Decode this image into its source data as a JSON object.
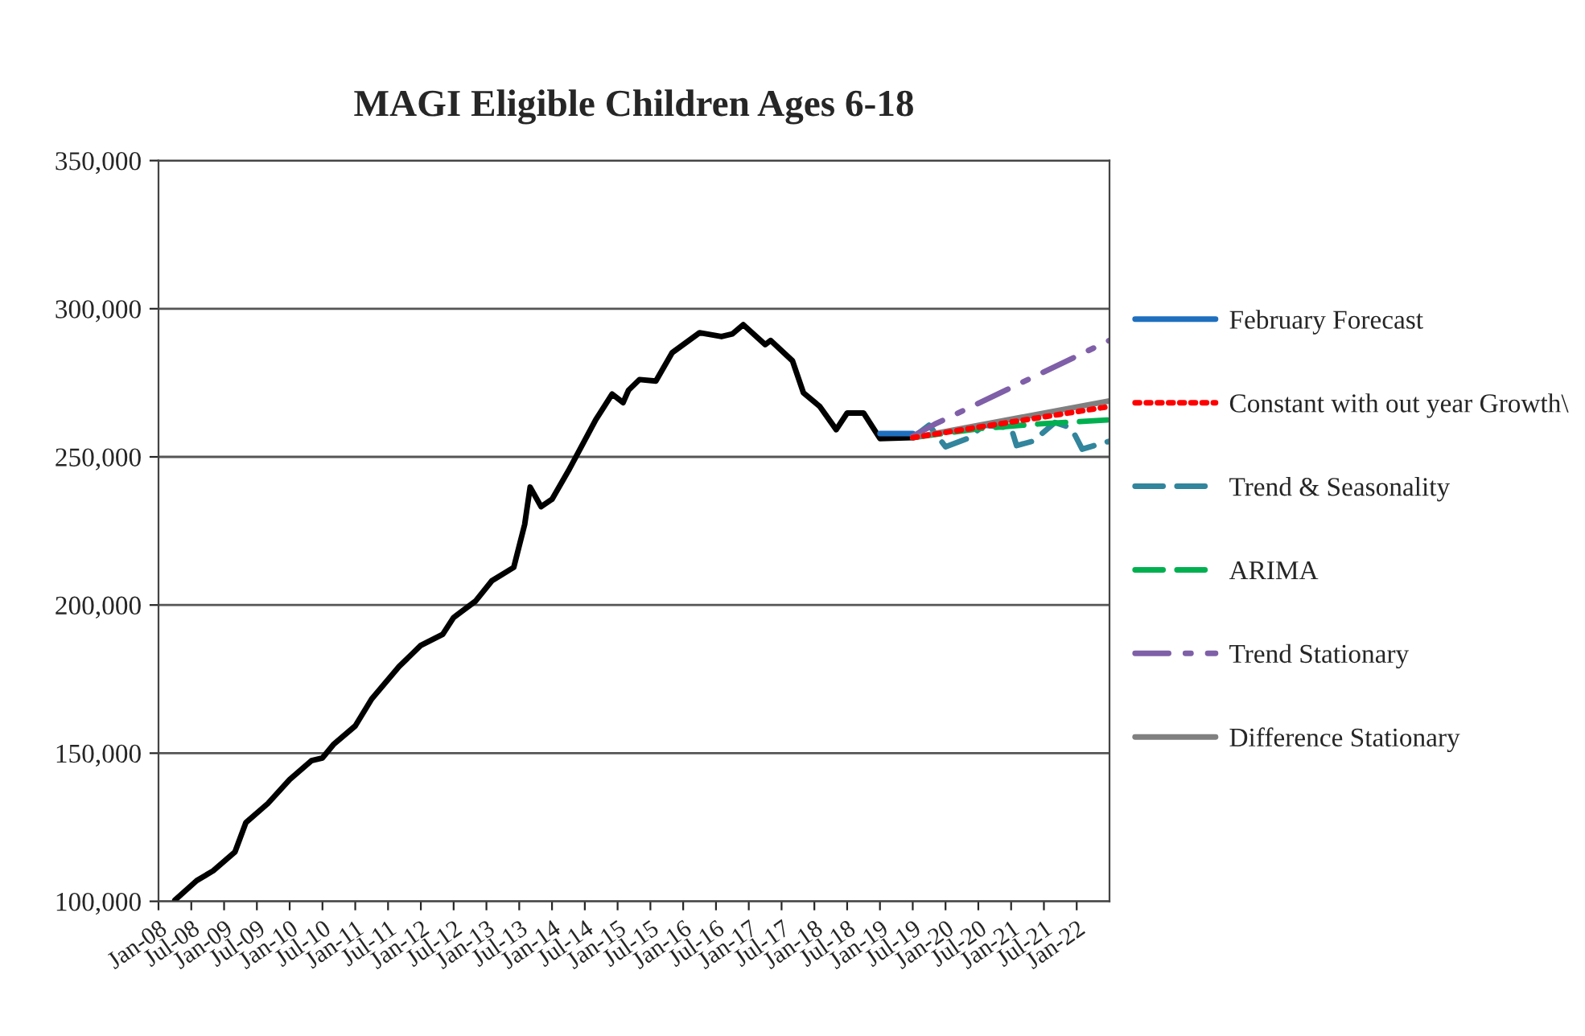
{
  "chart_data": {
    "type": "line",
    "title": "MAGI Eligible Children Ages 6-18",
    "xlim": [
      "2008-01",
      "2022-07"
    ],
    "xticks": [
      {
        "value": "2008-01",
        "label": "Jan-08"
      },
      {
        "value": "2008-07",
        "label": "Jul-08"
      },
      {
        "value": "2009-01",
        "label": "Jan-09"
      },
      {
        "value": "2009-07",
        "label": "Jul-09"
      },
      {
        "value": "2010-01",
        "label": "Jan-10"
      },
      {
        "value": "2010-07",
        "label": "Jul-10"
      },
      {
        "value": "2011-01",
        "label": "Jan-11"
      },
      {
        "value": "2011-07",
        "label": "Jul-11"
      },
      {
        "value": "2012-01",
        "label": "Jan-12"
      },
      {
        "value": "2012-07",
        "label": "Jul-12"
      },
      {
        "value": "2013-01",
        "label": "Jan-13"
      },
      {
        "value": "2013-07",
        "label": "Jul-13"
      },
      {
        "value": "2014-01",
        "label": "Jan-14"
      },
      {
        "value": "2014-07",
        "label": "Jul-14"
      },
      {
        "value": "2015-01",
        "label": "Jan-15"
      },
      {
        "value": "2015-07",
        "label": "Jul-15"
      },
      {
        "value": "2016-01",
        "label": "Jan-16"
      },
      {
        "value": "2016-07",
        "label": "Jul-16"
      },
      {
        "value": "2017-01",
        "label": "Jan-17"
      },
      {
        "value": "2017-07",
        "label": "Jul-17"
      },
      {
        "value": "2018-01",
        "label": "Jan-18"
      },
      {
        "value": "2018-07",
        "label": "Jul-18"
      },
      {
        "value": "2019-01",
        "label": "Jan-19"
      },
      {
        "value": "2019-07",
        "label": "Jul-19"
      },
      {
        "value": "2020-01",
        "label": "Jan-20"
      },
      {
        "value": "2020-07",
        "label": "Jul-20"
      },
      {
        "value": "2021-01",
        "label": "Jan-21"
      },
      {
        "value": "2021-07",
        "label": "Jul-21"
      },
      {
        "value": "2022-01",
        "label": "Jan-22"
      }
    ],
    "ylim": [
      100000,
      350000
    ],
    "yticks": [
      {
        "value": 100000,
        "label": "100,000"
      },
      {
        "value": 150000,
        "label": "150,000"
      },
      {
        "value": 200000,
        "label": "200,000"
      },
      {
        "value": 250000,
        "label": "250,000"
      },
      {
        "value": 300000,
        "label": "300,000"
      },
      {
        "value": 350000,
        "label": "350,000"
      }
    ],
    "grid": "y",
    "legend": "right",
    "series": [
      {
        "color": "#000000",
        "line_style": "solid",
        "x": [
          "2008-04",
          "2008-08",
          "2008-11",
          "2009-03",
          "2009-05",
          "2009-09",
          "2010-01",
          "2010-05",
          "2010-07",
          "2010-09",
          "2011-01",
          "2011-04",
          "2011-09",
          "2012-01",
          "2012-05",
          "2012-07",
          "2012-11",
          "2013-02",
          "2013-06",
          "2013-08",
          "2013-09",
          "2013-11",
          "2014-01",
          "2014-04",
          "2014-09",
          "2014-12",
          "2015-02",
          "2015-03",
          "2015-05",
          "2015-08",
          "2015-11",
          "2016-04",
          "2016-08",
          "2016-10",
          "2016-12",
          "2017-04",
          "2017-05",
          "2017-09",
          "2017-11",
          "2018-02",
          "2018-05",
          "2018-07",
          "2018-10",
          "2019-01",
          "2019-07"
        ],
        "values": [
          100400,
          107000,
          110300,
          116700,
          126600,
          133000,
          141100,
          147500,
          148400,
          152900,
          159200,
          168300,
          179200,
          186400,
          190100,
          195800,
          201300,
          208200,
          212700,
          227200,
          239800,
          233200,
          235700,
          245300,
          262500,
          271200,
          268300,
          272500,
          276100,
          275600,
          285200,
          291900,
          290600,
          291500,
          294600,
          287900,
          289300,
          282400,
          271600,
          267000,
          259200,
          264800,
          264800,
          256200,
          256500
        ]
      },
      {
        "name": "February Forecast",
        "color": "#1f6fbf",
        "line_style": "solid",
        "x": [
          "2019-01",
          "2019-07"
        ],
        "values": [
          257900,
          257900
        ]
      },
      {
        "name": "Constant with out year Growth\\",
        "color": "#ff0000",
        "line_style": "dotted",
        "x": [
          "2019-07",
          "2022-07"
        ],
        "values": [
          256500,
          267000
        ]
      },
      {
        "name": "Trend & Seasonality",
        "color": "#31859c",
        "line_style": "dashed",
        "x": [
          "2019-07",
          "2019-10",
          "2020-01",
          "2020-05",
          "2020-08",
          "2021-01",
          "2021-02",
          "2021-05",
          "2021-09",
          "2021-12",
          "2022-02",
          "2022-07"
        ],
        "values": [
          256500,
          260700,
          253400,
          256200,
          260700,
          259800,
          253800,
          255300,
          261600,
          259800,
          252600,
          255300
        ]
      },
      {
        "name": "ARIMA",
        "color": "#00b050",
        "line_style": "dashed",
        "x": [
          "2019-07",
          "2020-07",
          "2021-05",
          "2022-07"
        ],
        "values": [
          256500,
          259500,
          261000,
          262500
        ]
      },
      {
        "name": "Trend Stationary",
        "color": "#7f5fa8",
        "line_style": "dashdot",
        "x": [
          "2019-07",
          "2019-11",
          "2022-07"
        ],
        "values": [
          257000,
          261000,
          289300
        ]
      },
      {
        "name": "Difference Stationary",
        "color": "#808080",
        "line_style": "solid",
        "x": [
          "2019-07",
          "2022-07"
        ],
        "values": [
          256500,
          268900
        ]
      }
    ]
  }
}
